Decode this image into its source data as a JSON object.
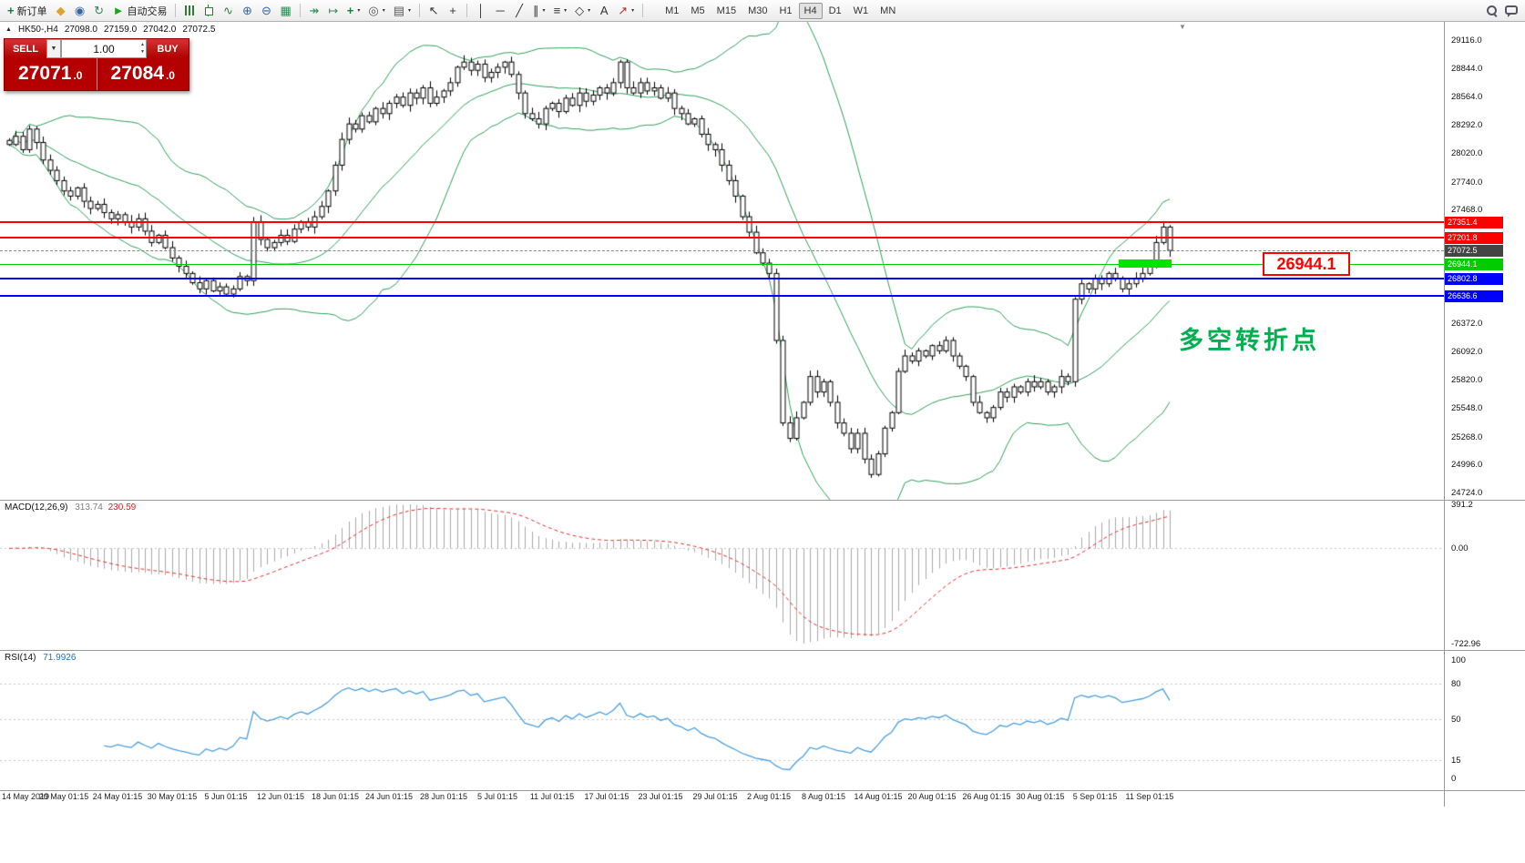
{
  "colors": {
    "band_green": "#2e9e5b",
    "level_red": "#ff0000",
    "level_blue": "#0000ff",
    "level_green": "#00cc00",
    "highlight_green": "#00e400",
    "price_tag_bg": "#444444",
    "macd_hist": "#a8a8a8",
    "macd_signal": "#e03030",
    "rsi_line": "#4a9ede",
    "annotation_green": "#00b050",
    "panel_red": "#c00000"
  },
  "toolbar": {
    "items": [
      {
        "name": "new-order-button",
        "glyph": "+",
        "color": "#188038",
        "bold": true,
        "label": "新订单"
      },
      {
        "name": "metaeditor-button",
        "glyph": "◆",
        "color": "#e0a22e"
      },
      {
        "name": "profile-button",
        "glyph": "◉",
        "color": "#3465a4"
      },
      {
        "name": "refresh-button",
        "glyph": "↻",
        "color": "#2e8b57"
      },
      {
        "name": "autotrading-button",
        "glyph": "►",
        "color": "#21a121",
        "label": "自动交易"
      },
      {
        "type": "sep"
      },
      {
        "name": "bar-chart-button",
        "css": "icon-bars"
      },
      {
        "name": "candlestick-chart-button",
        "css": "icon-candle"
      },
      {
        "name": "line-chart-button",
        "glyph": "∿",
        "color": "#2e7d32"
      },
      {
        "name": "zoom-in-button",
        "glyph": "⊕",
        "color": "#3465a4"
      },
      {
        "name": "zoom-out-button",
        "glyph": "⊖",
        "color": "#3465a4"
      },
      {
        "name": "tile-windows-button",
        "glyph": "▦",
        "color": "#2e8b57"
      },
      {
        "type": "sep"
      },
      {
        "name": "auto-scroll-button",
        "glyph": "↠",
        "color": "#2e8b57"
      },
      {
        "name": "chart-shift-button",
        "glyph": "↦",
        "color": "#2e8b57"
      },
      {
        "name": "indicators-button",
        "glyph": "+",
        "color": "#188038",
        "bold": true,
        "caret": true
      },
      {
        "name": "periods-button",
        "glyph": "◎",
        "color": "#555555",
        "caret": true
      },
      {
        "name": "templates-button",
        "glyph": "▤",
        "color": "#555555",
        "caret": true
      },
      {
        "type": "sep"
      },
      {
        "name": "cursor-button",
        "glyph": "↖",
        "color": "#333333"
      },
      {
        "name": "crosshair-button",
        "glyph": "+",
        "color": "#333333"
      },
      {
        "type": "sep"
      },
      {
        "name": "vertical-line-button",
        "glyph": "│",
        "color": "#333333"
      },
      {
        "name": "horizontal-line-button",
        "glyph": "─",
        "color": "#333333"
      },
      {
        "name": "trendline-button",
        "glyph": "╱",
        "color": "#333333"
      },
      {
        "name": "channel-button",
        "glyph": "∥",
        "color": "#333333",
        "caret": true
      },
      {
        "name": "fibonacci-button",
        "glyph": "≡",
        "color": "#333333",
        "caret": true
      },
      {
        "name": "shapes-button",
        "glyph": "◇",
        "color": "#333333",
        "caret": true
      },
      {
        "name": "text-button",
        "glyph": "A",
        "color": "#333333"
      },
      {
        "name": "arrows-button",
        "glyph": "↗",
        "color": "#b03030",
        "caret": true
      },
      {
        "type": "sep"
      }
    ],
    "timeframes": [
      "M1",
      "M5",
      "M15",
      "M30",
      "H1",
      "H4",
      "D1",
      "W1",
      "MN"
    ],
    "active_timeframe": "H4"
  },
  "chart_header": {
    "symbol": "HK50-,H4",
    "open": "27098.0",
    "high": "27159.0",
    "low": "27042.0",
    "close": "27072.5"
  },
  "trade_panel": {
    "sell_label": "SELL",
    "buy_label": "BUY",
    "volume": "1.00",
    "sell_price_main": "27071",
    "sell_price_frac": ".0",
    "buy_price_main": "27084",
    "buy_price_frac": ".0"
  },
  "annotation": {
    "text": "多空转折点"
  },
  "callout": {
    "text": "26944.1"
  },
  "levels": [
    {
      "name": "resistance-line-1",
      "value": 27351.4,
      "label": "27351.4",
      "type": "red"
    },
    {
      "name": "resistance-line-2",
      "value": 27201.8,
      "label": "27201.8",
      "type": "red"
    },
    {
      "name": "bid-price-line",
      "value": 27072.5,
      "label": "27072.5",
      "type": "price"
    },
    {
      "name": "pivot-line",
      "value": 26944.1,
      "label": "26944.1",
      "type": "green"
    },
    {
      "name": "support-line-1",
      "value": 26802.8,
      "label": "26802.8",
      "type": "blue"
    },
    {
      "name": "support-line-2",
      "value": 26636.6,
      "label": "26636.6",
      "type": "blue"
    }
  ],
  "y_ticks": [
    "29116.0",
    "28844.0",
    "28564.0",
    "28292.0",
    "28020.0",
    "27740.0",
    "27468.0",
    "26372.0",
    "26092.0",
    "25820.0",
    "25548.0",
    "25268.0",
    "24996.0",
    "24724.0"
  ],
  "macd_panel": {
    "name": "MACD(12,26,9)",
    "value_main": "313.74",
    "value_signal": "230.59",
    "axis": [
      "391.2",
      "0.00",
      "-722.96"
    ]
  },
  "rsi_panel": {
    "name": "RSI(14)",
    "value": "71.9926",
    "axis": [
      "100",
      "80",
      "50",
      "15",
      "0"
    ],
    "axis_values": [
      100,
      80,
      50,
      15,
      0
    ]
  },
  "x_labels": [
    {
      "text": "14 May 2019",
      "bar": 0
    },
    {
      "text": "20 May 01:15",
      "bar": 8
    },
    {
      "text": "24 May 01:15",
      "bar": 16
    },
    {
      "text": "30 May 01:15",
      "bar": 24
    },
    {
      "text": "5 Jun 01:15",
      "bar": 32
    },
    {
      "text": "12 Jun 01:15",
      "bar": 40
    },
    {
      "text": "18 Jun 01:15",
      "bar": 48
    },
    {
      "text": "24 Jun 01:15",
      "bar": 56
    },
    {
      "text": "28 Jun 01:15",
      "bar": 64
    },
    {
      "text": "5 Jul 01:15",
      "bar": 72
    },
    {
      "text": "11 Jul 01:15",
      "bar": 80
    },
    {
      "text": "17 Jul 01:15",
      "bar": 88
    },
    {
      "text": "23 Jul 01:15",
      "bar": 96
    },
    {
      "text": "29 Jul 01:15",
      "bar": 104
    },
    {
      "text": "2 Aug 01:15",
      "bar": 112
    },
    {
      "text": "8 Aug 01:15",
      "bar": 120
    },
    {
      "text": "14 Aug 01:15",
      "bar": 128
    },
    {
      "text": "20 Aug 01:15",
      "bar": 136
    },
    {
      "text": "26 Aug 01:15",
      "bar": 144
    },
    {
      "text": "30 Aug 01:15",
      "bar": 152
    },
    {
      "text": "5 Sep 01:15",
      "bar": 160
    },
    {
      "text": "11 Sep 01:15",
      "bar": 168
    }
  ],
  "chart_data": {
    "type": "candlestick",
    "symbol": "HK50-",
    "timeframe": "H4",
    "ohlc_current": {
      "open": 27098.0,
      "high": 27159.0,
      "low": 27042.0,
      "close": 27072.5
    },
    "price_levels": [
      27351.4,
      27201.8,
      27072.5,
      26944.1,
      26802.8,
      26636.6
    ],
    "y_axis_range": [
      24724.0,
      29116.0
    ],
    "indicators": {
      "bollinger_bands": {
        "period": 20,
        "deviation": 2
      },
      "macd": {
        "fast": 12,
        "slow": 26,
        "signal": 9,
        "last_main": 313.74,
        "last_signal": 230.59,
        "range": [
          -722.96,
          391.2
        ]
      },
      "rsi": {
        "period": 14,
        "last": 71.9926
      }
    },
    "closes": [
      28100,
      28180,
      28050,
      28250,
      28120,
      27950,
      27850,
      27750,
      27650,
      27600,
      27680,
      27550,
      27480,
      27520,
      27440,
      27380,
      27420,
      27350,
      27300,
      27380,
      27260,
      27150,
      27220,
      27100,
      27000,
      26920,
      26850,
      26760,
      26700,
      26780,
      26680,
      26720,
      26650,
      26700,
      26820,
      26780,
      27350,
      27180,
      27100,
      27150,
      27220,
      27160,
      27280,
      27350,
      27300,
      27400,
      27500,
      27650,
      27900,
      28150,
      28300,
      28250,
      28380,
      28320,
      28450,
      28400,
      28500,
      28560,
      28480,
      28600,
      28550,
      28650,
      28500,
      28560,
      28620,
      28700,
      28850,
      28900,
      28820,
      28880,
      28750,
      28800,
      28850,
      28900,
      28780,
      28600,
      28400,
      28350,
      28300,
      28450,
      28500,
      28420,
      28550,
      28480,
      28600,
      28520,
      28580,
      28650,
      28600,
      28700,
      28900,
      28650,
      28600,
      28700,
      28620,
      28650,
      28550,
      28600,
      28450,
      28400,
      28300,
      28350,
      28200,
      28100,
      28050,
      27900,
      27750,
      27600,
      27400,
      27250,
      27050,
      26950,
      26850,
      26200,
      25400,
      25250,
      25450,
      25600,
      25850,
      25700,
      25800,
      25600,
      25400,
      25300,
      25150,
      25300,
      25050,
      24900,
      25100,
      25350,
      25500,
      25900,
      26050,
      26000,
      26100,
      26050,
      26150,
      26100,
      26200,
      26050,
      25950,
      25850,
      25600,
      25500,
      25450,
      25550,
      25700,
      25650,
      25750,
      25700,
      25800,
      25750,
      25800,
      25700,
      25750,
      25850,
      25800,
      26600,
      26750,
      26700,
      26800,
      26750,
      26850,
      26800,
      26700,
      26750,
      26800,
      26850,
      26950,
      27150,
      27300,
      27072.5
    ]
  }
}
